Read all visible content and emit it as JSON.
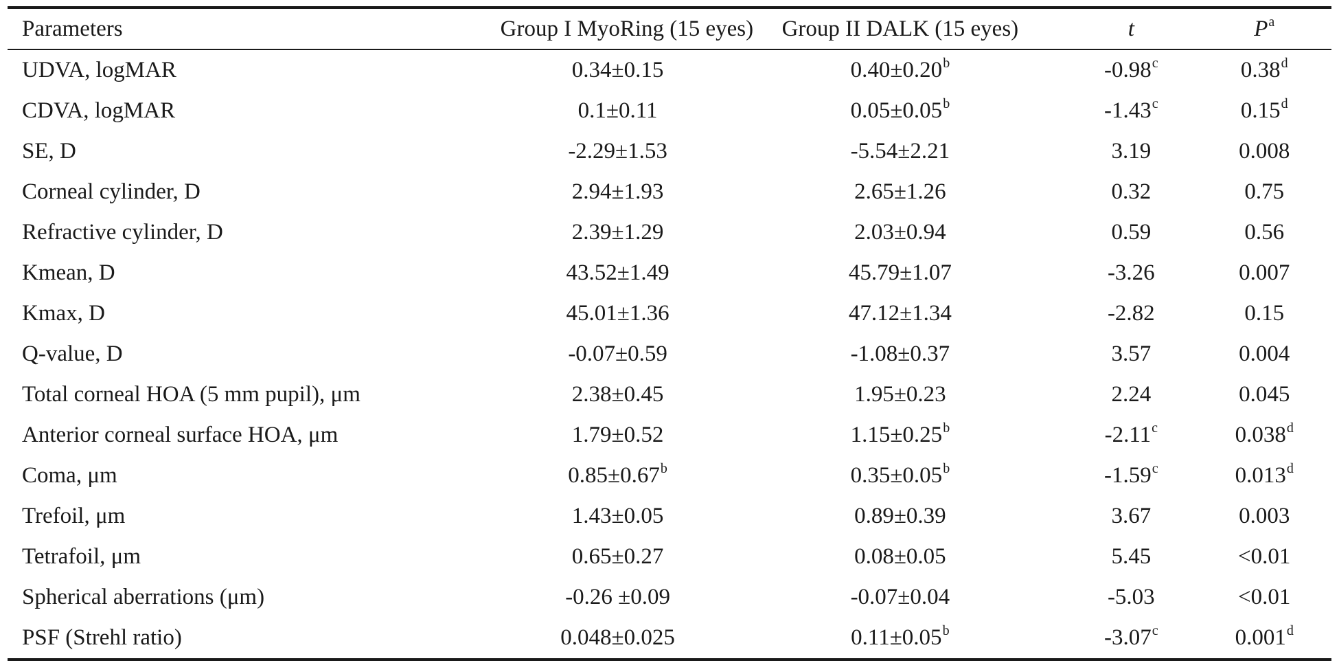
{
  "table": {
    "headers": {
      "param": "Parameters",
      "group1": "Group I MyoRing (15 eyes)",
      "group2": "Group II DALK (15 eyes)",
      "t": "t",
      "p": "P",
      "p_sup": "a"
    },
    "rows": [
      {
        "param": "UDVA, logMAR",
        "g1": "0.34±0.15",
        "g1_sup": "",
        "g2": "0.40±0.20",
        "g2_sup": "b",
        "t": "-0.98",
        "t_sup": "c",
        "p": "0.38",
        "p_sup": "d"
      },
      {
        "param": "CDVA, logMAR",
        "g1": "0.1±0.11",
        "g1_sup": "",
        "g2": "0.05±0.05",
        "g2_sup": "b",
        "t": "-1.43",
        "t_sup": "c",
        "p": "0.15",
        "p_sup": "d"
      },
      {
        "param": "SE, D",
        "g1": "-2.29±1.53",
        "g1_sup": "",
        "g2": "-5.54±2.21",
        "g2_sup": "",
        "t": "3.19",
        "t_sup": "",
        "p": "0.008",
        "p_sup": ""
      },
      {
        "param": "Corneal cylinder, D",
        "g1": "2.94±1.93",
        "g1_sup": "",
        "g2": "2.65±1.26",
        "g2_sup": "",
        "t": "0.32",
        "t_sup": "",
        "p": "0.75",
        "p_sup": ""
      },
      {
        "param": "Refractive cylinder, D",
        "g1": "2.39±1.29",
        "g1_sup": "",
        "g2": "2.03±0.94",
        "g2_sup": "",
        "t": "0.59",
        "t_sup": "",
        "p": "0.56",
        "p_sup": ""
      },
      {
        "param": "Kmean, D",
        "g1": "43.52±1.49",
        "g1_sup": "",
        "g2": "45.79±1.07",
        "g2_sup": "",
        "t": "-3.26",
        "t_sup": "",
        "p": "0.007",
        "p_sup": ""
      },
      {
        "param": "Kmax, D",
        "g1": "45.01±1.36",
        "g1_sup": "",
        "g2": "47.12±1.34",
        "g2_sup": "",
        "t": "-2.82",
        "t_sup": "",
        "p": "0.15",
        "p_sup": ""
      },
      {
        "param": "Q-value, D",
        "g1": "-0.07±0.59",
        "g1_sup": "",
        "g2": "-1.08±0.37",
        "g2_sup": "",
        "t": "3.57",
        "t_sup": "",
        "p": "0.004",
        "p_sup": ""
      },
      {
        "param": "Total corneal HOA (5 mm pupil), μm",
        "g1": "2.38±0.45",
        "g1_sup": "",
        "g2": "1.95±0.23",
        "g2_sup": "",
        "t": "2.24",
        "t_sup": "",
        "p": "0.045",
        "p_sup": ""
      },
      {
        "param": "Anterior corneal surface HOA, μm",
        "g1": "1.79±0.52",
        "g1_sup": "",
        "g2": "1.15±0.25",
        "g2_sup": "b",
        "t": "-2.11",
        "t_sup": "c",
        "p": "0.038",
        "p_sup": "d"
      },
      {
        "param": "Coma, μm",
        "g1": "0.85±0.67",
        "g1_sup": "b",
        "g2": "0.35±0.05",
        "g2_sup": "b",
        "t": "-1.59",
        "t_sup": "c",
        "p": "0.013",
        "p_sup": "d"
      },
      {
        "param": "Trefoil, μm",
        "g1": "1.43±0.05",
        "g1_sup": "",
        "g2": "0.89±0.39",
        "g2_sup": "",
        "t": "3.67",
        "t_sup": "",
        "p": "0.003",
        "p_sup": ""
      },
      {
        "param": "Tetrafoil, μm",
        "g1": "0.65±0.27",
        "g1_sup": "",
        "g2": "0.08±0.05",
        "g2_sup": "",
        "t": "5.45",
        "t_sup": "",
        "p": "<0.01",
        "p_sup": ""
      },
      {
        "param": "Spherical aberrations (μm)",
        "g1": "-0.26 ±0.09",
        "g1_sup": "",
        "g2": "-0.07±0.04",
        "g2_sup": "",
        "t": "-5.03",
        "t_sup": "",
        "p": "<0.01",
        "p_sup": ""
      },
      {
        "param": "PSF (Strehl ratio)",
        "g1": "0.048±0.025",
        "g1_sup": "",
        "g2": "0.11±0.05",
        "g2_sup": "b",
        "t": "-3.07",
        "t_sup": "c",
        "p": "0.001",
        "p_sup": "d"
      }
    ]
  }
}
